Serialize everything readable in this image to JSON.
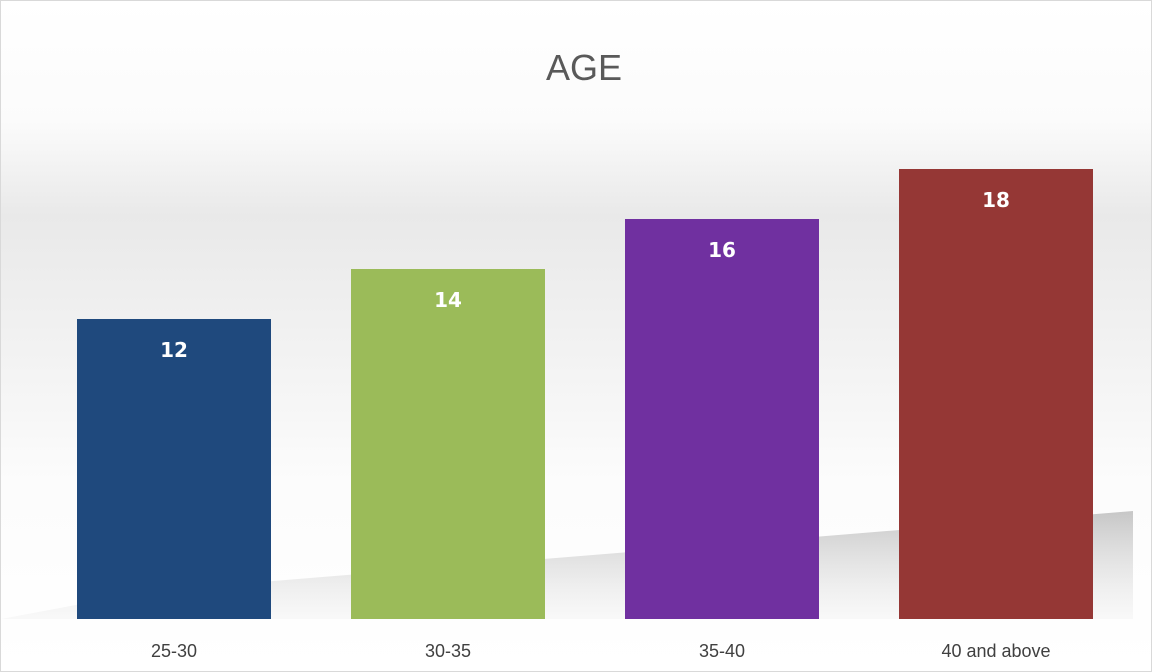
{
  "chart_data": {
    "type": "bar",
    "title": "AGE",
    "xlabel": "",
    "ylabel": "",
    "categories": [
      "25-30",
      "30-35",
      "35-40",
      "40 and above"
    ],
    "values": [
      12,
      14,
      16,
      18
    ],
    "colors": [
      "#1f497d",
      "#9bbb59",
      "#7030a0",
      "#953735"
    ],
    "data_labels": [
      "12",
      "14",
      "16",
      "18"
    ],
    "ylim": [
      0,
      20
    ],
    "grid": false,
    "legend": "none"
  }
}
